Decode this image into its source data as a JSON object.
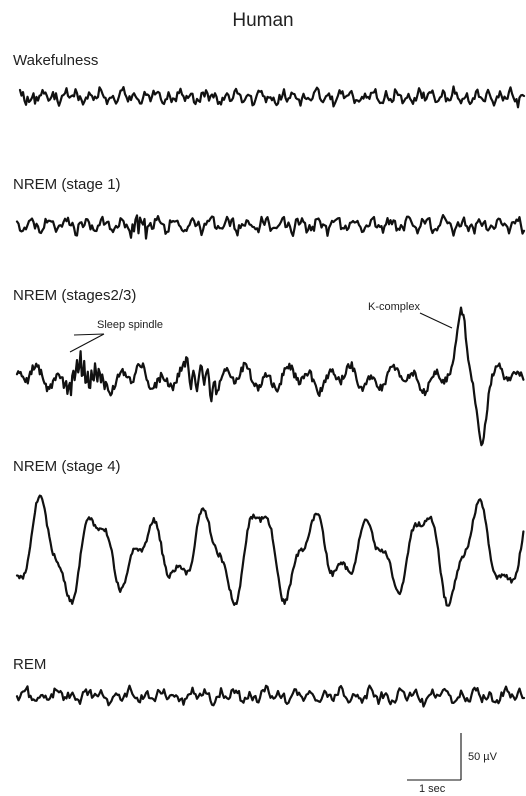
{
  "figure": {
    "title": "Human",
    "stages": [
      {
        "id": "wake",
        "label": "Wakefulness"
      },
      {
        "id": "n1",
        "label": "NREM (stage 1)"
      },
      {
        "id": "n23",
        "label": "NREM (stages2/3)"
      },
      {
        "id": "n4",
        "label": "NREM (stage 4)"
      },
      {
        "id": "rem",
        "label": "REM"
      }
    ],
    "annotations": {
      "sleep_spindle": "Sleep spindle",
      "k_complex": "K-complex"
    },
    "scale_bar": {
      "amplitude": "50 µV",
      "time": "1 sec"
    },
    "colors": {
      "trace": "#111111",
      "text": "#222222",
      "background": "#ffffff"
    }
  }
}
